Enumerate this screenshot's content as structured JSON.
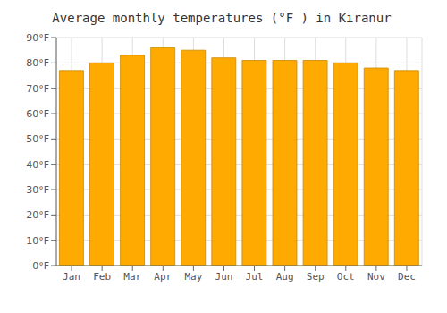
{
  "chart_data": {
    "type": "bar",
    "title": "Average monthly temperatures (°F ) in Kīranūr",
    "categories": [
      "Jan",
      "Feb",
      "Mar",
      "Apr",
      "May",
      "Jun",
      "Jul",
      "Aug",
      "Sep",
      "Oct",
      "Nov",
      "Dec"
    ],
    "values": [
      77,
      80,
      83,
      86,
      85,
      82,
      81,
      81,
      81,
      80,
      78,
      77
    ],
    "color": "#FFAA00",
    "ylim": [
      0,
      90
    ],
    "yticks": [
      {
        "value": 0,
        "label": "0°F"
      },
      {
        "value": 10,
        "label": "10°F"
      },
      {
        "value": 20,
        "label": "20°F"
      },
      {
        "value": 30,
        "label": "30°F"
      },
      {
        "value": 40,
        "label": "40°F"
      },
      {
        "value": 50,
        "label": "50°F"
      },
      {
        "value": 60,
        "label": "60°F"
      },
      {
        "value": 70,
        "label": "70°F"
      },
      {
        "value": 80,
        "label": "80°F"
      },
      {
        "value": 90,
        "label": "90°F"
      }
    ],
    "grid": true
  }
}
